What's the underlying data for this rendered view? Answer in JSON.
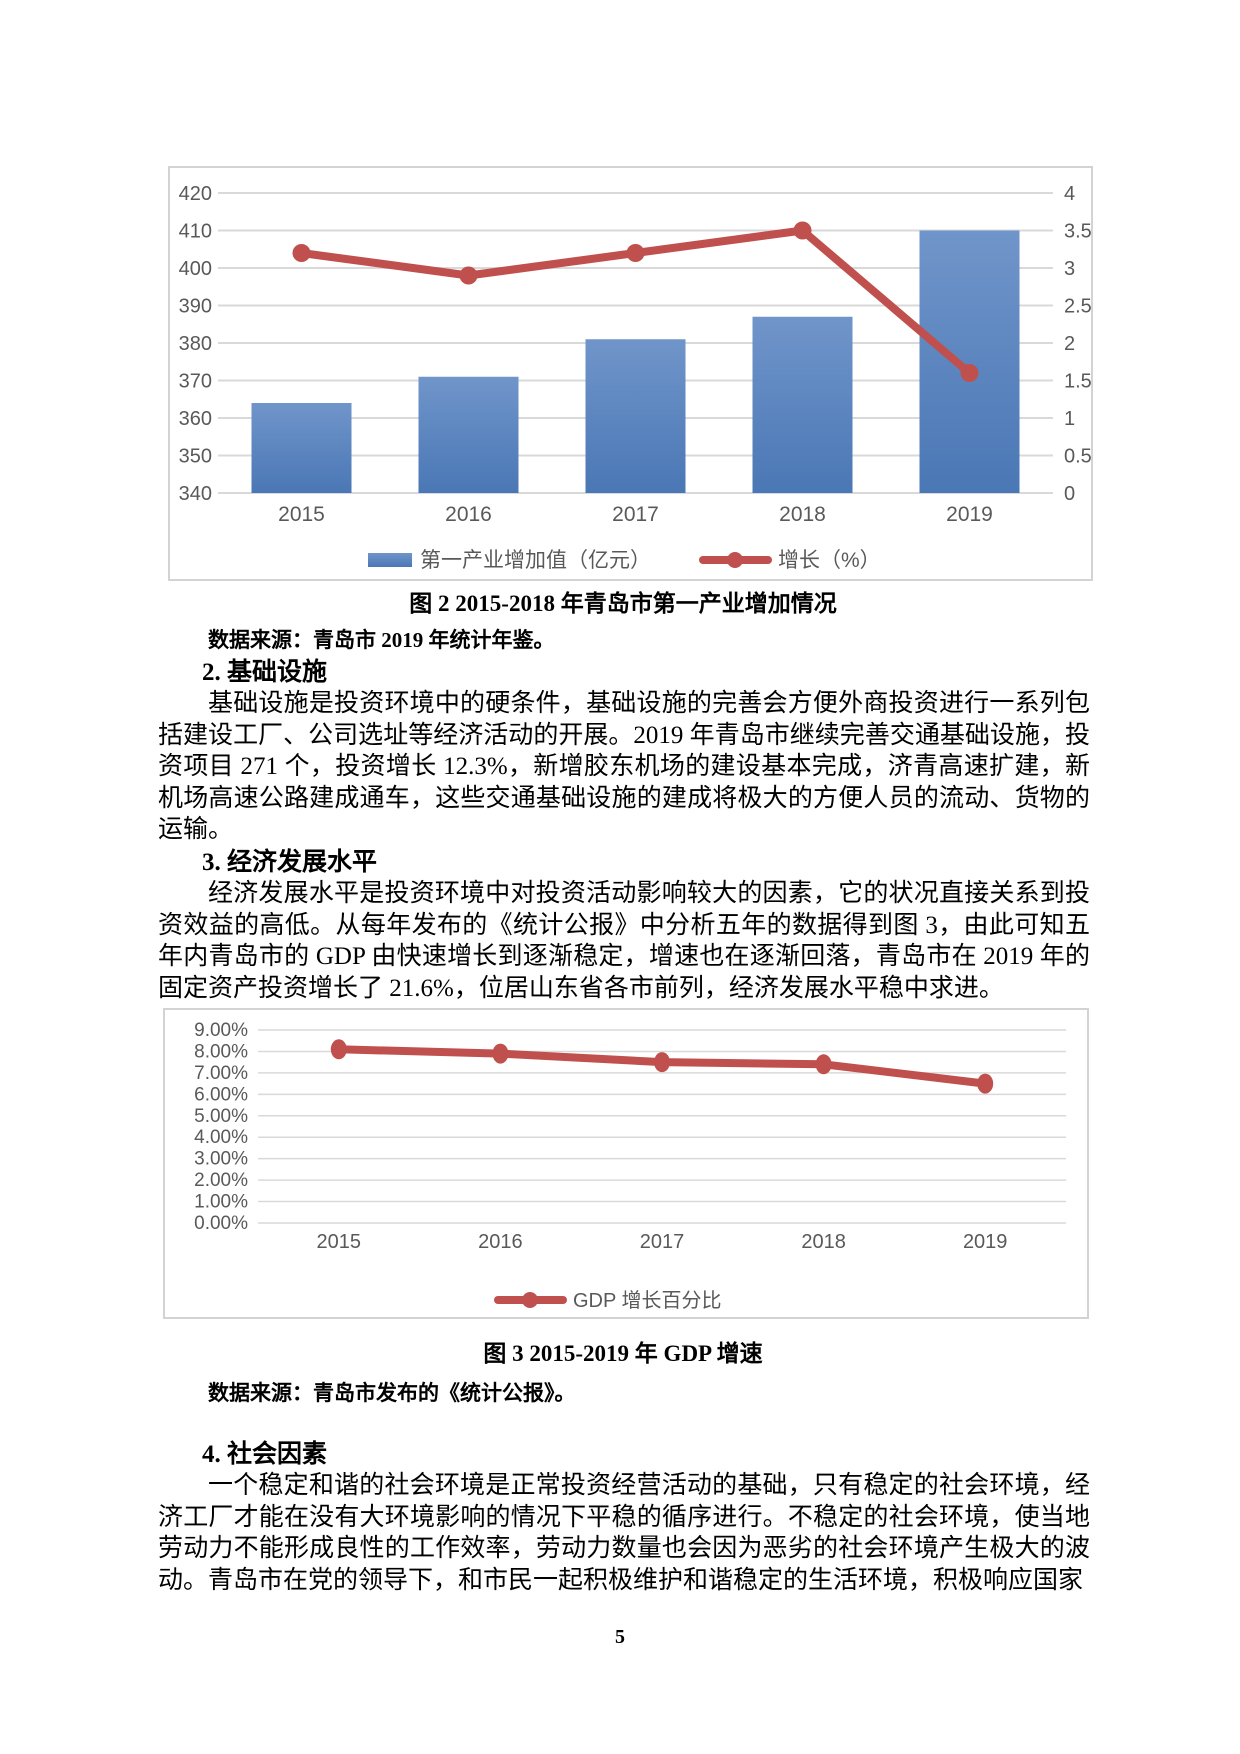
{
  "page": {
    "number": "5"
  },
  "figure2": {
    "caption": "图 2 2015-2018 年青岛市第一产业增加情况",
    "source": "数据来源：青岛市 2019 年统计年鉴。"
  },
  "figure3": {
    "caption": "图 3 2015-2019 年 GDP 增速",
    "source": "数据来源：青岛市发布的《统计公报》。"
  },
  "sections": [
    {
      "heading": "2. 基础设施",
      "body": "基础设施是投资环境中的硬条件，基础设施的完善会方便外商投资进行一系列包括建设工厂、公司选址等经济活动的开展。2019 年青岛市继续完善交通基础设施，投资项目 271 个，投资增长 12.3%，新增胶东机场的建设基本完成，济青高速扩建，新机场高速公路建成通车，这些交通基础设施的建成将极大的方便人员的流动、货物的运输。"
    },
    {
      "heading": "3. 经济发展水平",
      "body": "经济发展水平是投资环境中对投资活动影响较大的因素，它的状况直接关系到投资效益的高低。从每年发布的《统计公报》中分析五年的数据得到图 3，由此可知五年内青岛市的 GDP 由快速增长到逐渐稳定，增速也在逐渐回落，青岛市在 2019 年的固定资产投资增长了 21.6%，位居山东省各市前列，经济发展水平稳中求进。"
    },
    {
      "heading": "4. 社会因素",
      "body": "一个稳定和谐的社会环境是正常投资经营活动的基础，只有稳定的社会环境，经济工厂才能在没有大环境影响的情况下平稳的循序进行。不稳定的社会环境，使当地劳动力不能形成良性的工作效率，劳动力数量也会因为恶劣的社会环境产生极大的波动。青岛市在党的领导下，和市民一起积极维护和谐稳定的生活环境，积极响应国家"
    }
  ],
  "chart_data": [
    {
      "type": "bar",
      "subtype": "bar+line-combo",
      "categories": [
        "2015",
        "2016",
        "2017",
        "2018",
        "2019"
      ],
      "series": [
        {
          "name": "第一产业增加值（亿元）",
          "kind": "bar",
          "axis": "left",
          "values": [
            364,
            371,
            381,
            387,
            410
          ],
          "color": "#4a77b5",
          "color_top": "#7095ca"
        },
        {
          "name": "增长（%）",
          "kind": "line",
          "axis": "right",
          "values": [
            3.2,
            2.9,
            3.2,
            3.5,
            1.6
          ],
          "color": "#c0504d"
        }
      ],
      "left_axis": {
        "min": 340,
        "max": 420,
        "step": 10
      },
      "right_axis": {
        "min": 0,
        "max": 4,
        "step": 0.5
      },
      "grid": true,
      "legend_position": "bottom",
      "gridline_color": "#d9d9d9",
      "tick_color": "#595959",
      "frame_color": "#d3d3d3"
    },
    {
      "type": "line",
      "categories": [
        "2015",
        "2016",
        "2017",
        "2018",
        "2019"
      ],
      "series": [
        {
          "name": "GDP 增长百分比",
          "kind": "line",
          "values": [
            8.1,
            7.9,
            7.5,
            7.4,
            6.5
          ],
          "color": "#c0504d"
        }
      ],
      "y_axis": {
        "min": 0,
        "max": 9,
        "step": 1,
        "format": "percent-2dp"
      },
      "grid": true,
      "legend_position": "bottom",
      "gridline_color": "#d9d9d9",
      "tick_color": "#595959",
      "frame_color": "#d3d3d3"
    }
  ]
}
